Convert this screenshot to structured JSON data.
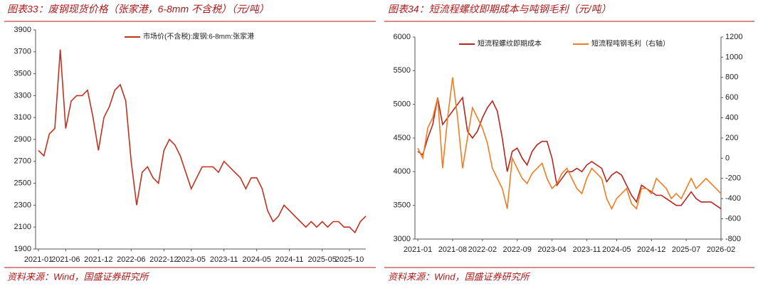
{
  "chart_data": [
    {
      "type": "line",
      "title": "图表33：废钢现货价格（张家港，6-8mm 不含税）（元/吨）",
      "source": "资料来源：Wind，国盛证券研究所",
      "x": [
        "2021-01",
        "2021-02",
        "2021-03",
        "2021-04",
        "2021-05",
        "2021-06",
        "2021-07",
        "2021-08",
        "2021-09",
        "2021-10",
        "2021-11",
        "2021-12",
        "2022-01",
        "2022-02",
        "2022-03",
        "2022-04",
        "2022-05",
        "2022-06",
        "2022-07",
        "2022-08",
        "2022-09",
        "2022-10",
        "2022-11",
        "2022-12",
        "2023-01",
        "2023-02",
        "2023-03",
        "2023-04",
        "2023-05",
        "2023-06",
        "2023-07",
        "2023-08",
        "2023-09",
        "2023-10",
        "2023-11",
        "2023-12",
        "2024-01",
        "2024-02",
        "2024-03",
        "2024-04",
        "2024-05",
        "2024-06",
        "2024-07",
        "2024-08",
        "2024-09",
        "2024-10",
        "2024-11",
        "2024-12",
        "2025-01",
        "2025-02",
        "2025-03",
        "2025-04",
        "2025-05",
        "2025-06",
        "2025-07",
        "2025-08",
        "2025-09",
        "2025-10",
        "2025-11",
        "2025-12",
        "2026-01"
      ],
      "xticks": [
        "2021-01",
        "2021-06",
        "2021-12",
        "2022-06",
        "2022-12",
        "2023-05",
        "2023-11",
        "2024-05",
        "2024-11",
        "2025-05",
        "2025-10"
      ],
      "ylim": [
        1900,
        3900
      ],
      "yticks": [
        1900,
        2100,
        2300,
        2500,
        2700,
        2900,
        3100,
        3300,
        3500,
        3700,
        3900
      ],
      "legend": "top",
      "series": [
        {
          "name": "市场价(不含税):废钢:6-8mm:张家港",
          "color": "#c0321f",
          "values": [
            2800,
            2750,
            2950,
            3000,
            3720,
            3000,
            3250,
            3300,
            3300,
            3350,
            3100,
            2800,
            3100,
            3200,
            3350,
            3400,
            3250,
            2700,
            2300,
            2600,
            2650,
            2550,
            2500,
            2800,
            2900,
            2850,
            2750,
            2600,
            2450,
            2550,
            2650,
            2650,
            2650,
            2600,
            2700,
            2650,
            2600,
            2550,
            2450,
            2550,
            2550,
            2450,
            2250,
            2150,
            2200,
            2300,
            2250,
            2200,
            2150,
            2100,
            2150,
            2100,
            2150,
            2100,
            2150,
            2150,
            2100,
            2100,
            2050,
            2150,
            2200
          ]
        }
      ]
    },
    {
      "type": "line",
      "title": "图表34：短流程螺纹即期成本与吨钢毛利（元/吨）",
      "source": "资料来源：Wind，国盛证券研究所",
      "x": [
        "2021-01",
        "2021-02",
        "2021-03",
        "2021-04",
        "2021-05",
        "2021-06",
        "2021-07",
        "2021-08",
        "2021-09",
        "2021-10",
        "2021-11",
        "2021-12",
        "2022-01",
        "2022-02",
        "2022-03",
        "2022-04",
        "2022-05",
        "2022-06",
        "2022-07",
        "2022-08",
        "2022-09",
        "2022-10",
        "2022-11",
        "2022-12",
        "2023-01",
        "2023-02",
        "2023-03",
        "2023-04",
        "2023-05",
        "2023-06",
        "2023-07",
        "2023-08",
        "2023-09",
        "2023-10",
        "2023-11",
        "2023-12",
        "2024-01",
        "2024-02",
        "2024-03",
        "2024-04",
        "2024-05",
        "2024-06",
        "2024-07",
        "2024-08",
        "2024-09",
        "2024-10",
        "2024-11",
        "2024-12",
        "2025-01",
        "2025-02",
        "2025-03",
        "2025-04",
        "2025-05",
        "2025-06",
        "2025-07",
        "2025-08",
        "2025-09",
        "2025-10",
        "2025-11",
        "2025-12",
        "2026-01",
        "2026-02"
      ],
      "xticks": [
        "2021-01",
        "2021-08",
        "2022-02",
        "2022-09",
        "2023-04",
        "2023-11",
        "2024-05",
        "2024-12",
        "2025-07",
        "2026-02"
      ],
      "ylim": [
        3000,
        6000
      ],
      "yticks": [
        3000,
        3500,
        4000,
        4500,
        5000,
        5500,
        6000
      ],
      "y2lim": [
        -800,
        1200
      ],
      "y2ticks": [
        -800,
        -600,
        -400,
        -200,
        0,
        200,
        400,
        600,
        800,
        1000,
        1200
      ],
      "legend": "top",
      "series": [
        {
          "name": "短流程螺纹即期成本",
          "color": "#b5261e",
          "values": [
            4300,
            4250,
            4500,
            4700,
            5100,
            4700,
            4800,
            4900,
            5000,
            5100,
            4600,
            4500,
            4600,
            4800,
            4950,
            5050,
            4900,
            4500,
            4000,
            4300,
            4350,
            4200,
            4100,
            4300,
            4400,
            4450,
            4450,
            4200,
            3800,
            3900,
            4000,
            4000,
            4050,
            4000,
            4100,
            4150,
            4100,
            4050,
            3850,
            3950,
            4000,
            3950,
            3800,
            3650,
            3550,
            3800,
            3750,
            3700,
            3650,
            3650,
            3600,
            3550,
            3500,
            3500,
            3600,
            3700,
            3600,
            3550,
            3550,
            3550,
            3500,
            3450
          ]
        },
        {
          "name": "短流程吨钢毛利（右轴）",
          "color": "#f07c22",
          "axis": "y2",
          "values": [
            100,
            0,
            300,
            400,
            600,
            -100,
            400,
            800,
            400,
            -100,
            200,
            500,
            400,
            300,
            150,
            -100,
            -200,
            -300,
            -500,
            0,
            -100,
            -200,
            -250,
            -150,
            -100,
            -50,
            -200,
            -300,
            -250,
            -150,
            -100,
            -200,
            -300,
            -350,
            -200,
            -100,
            -150,
            -200,
            -400,
            -500,
            -400,
            -350,
            -300,
            -450,
            -500,
            -300,
            -300,
            -350,
            -200,
            -250,
            -300,
            -400,
            -350,
            -400,
            -300,
            -200,
            -300,
            -250,
            -200,
            -250,
            -300,
            -350
          ]
        }
      ]
    }
  ]
}
